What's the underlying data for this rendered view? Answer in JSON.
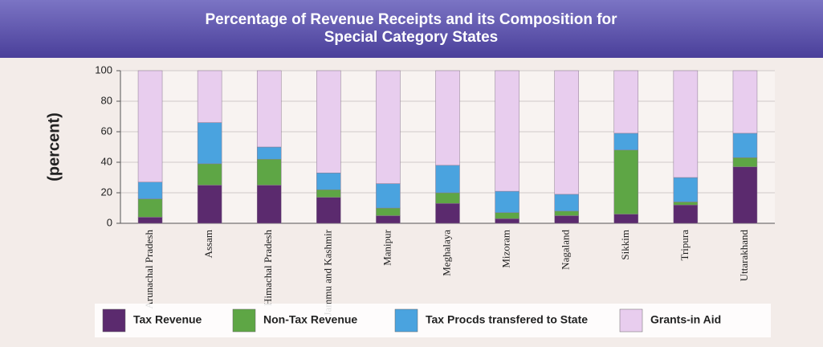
{
  "chart_data": {
    "type": "stacked_bar",
    "title": "Percentage of Revenue Receipts and its Composition for Special Category States",
    "y_label": "(percent)",
    "categories": [
      "Arunachal Pradesh",
      "Assam",
      "Himachal Pradesh",
      "Jammu and Kashmir",
      "Manipur",
      "Meghalaya",
      "Mizoram",
      "Nagaland",
      "Sikkim",
      "Tripura",
      "Uttarakhand"
    ],
    "series": [
      {
        "name": "Tax Revenue",
        "color": "#5b2a6e",
        "values": [
          4,
          25,
          25,
          17,
          5,
          13,
          3,
          5,
          6,
          12,
          37
        ]
      },
      {
        "name": "Non-Tax Revenue",
        "color": "#5ea645",
        "values": [
          12,
          14,
          17,
          5,
          5,
          7,
          4,
          3,
          42,
          2,
          6
        ]
      },
      {
        "name": "Tax Procds transfered to State",
        "color": "#4aa3df",
        "values": [
          11,
          27,
          8,
          11,
          16,
          18,
          14,
          11,
          11,
          16,
          16
        ]
      },
      {
        "name": "Grants-in Aid",
        "color": "#e8cdee",
        "values": [
          73,
          34,
          50,
          67,
          74,
          62,
          79,
          81,
          41,
          70,
          41
        ]
      }
    ],
    "ylim": [
      0,
      100
    ],
    "yticks": [
      0,
      20,
      40,
      60,
      80,
      100
    ],
    "grid": true
  }
}
